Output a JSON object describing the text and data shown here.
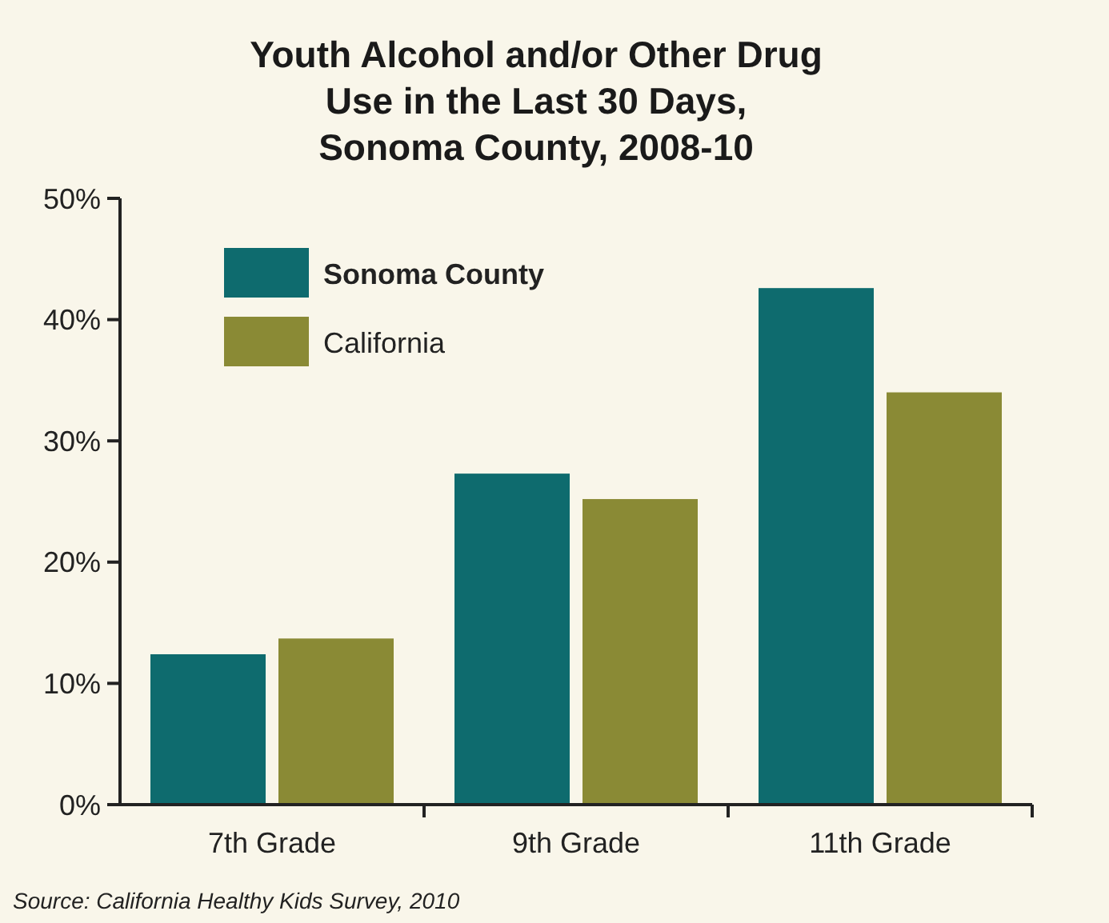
{
  "chart_data": {
    "type": "bar",
    "title": "Youth Alcohol and/or Other Drug\nUse in the Last 30 Days,\nSonoma County, 2008-10",
    "categories": [
      "7th Grade",
      "9th Grade",
      "11th Grade"
    ],
    "series": [
      {
        "name": "Sonoma County",
        "color": "#0e6b6e",
        "values": [
          12.4,
          27.3,
          42.6
        ]
      },
      {
        "name": "California",
        "color": "#8a8a35",
        "values": [
          13.7,
          25.2,
          34.0
        ]
      }
    ],
    "ylim": [
      0,
      50
    ],
    "yticks": [
      {
        "value": 0,
        "label": "0%"
      },
      {
        "value": 10,
        "label": "10%"
      },
      {
        "value": 20,
        "label": "20%"
      },
      {
        "value": 30,
        "label": "30%"
      },
      {
        "value": 40,
        "label": "40%"
      },
      {
        "value": 50,
        "label": "50%"
      }
    ],
    "grid": false,
    "legend": "top left",
    "annotations": [
      "Source: California Healthy Kids Survey, 2010"
    ]
  }
}
